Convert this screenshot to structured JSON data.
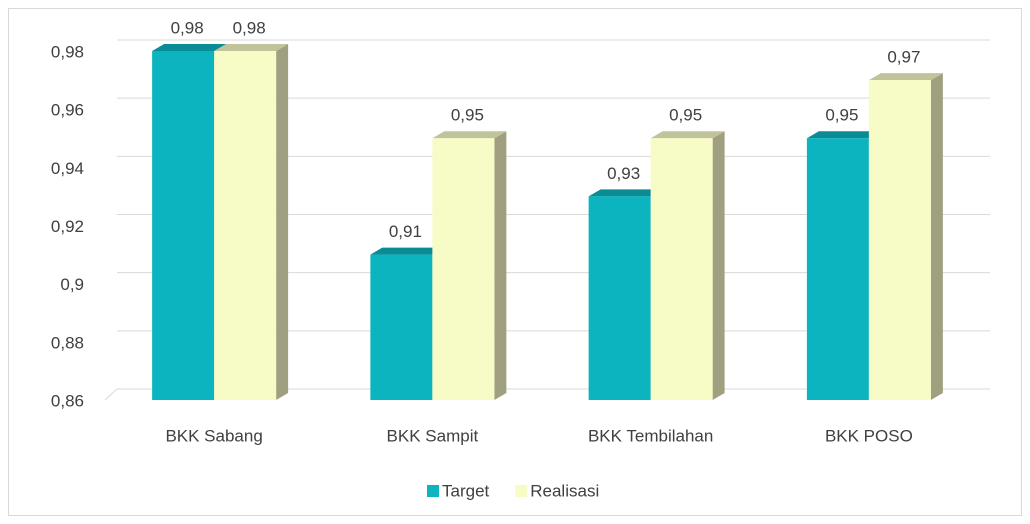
{
  "chart_data": {
    "type": "bar3d",
    "categories": [
      "BKK Sabang",
      "BKK Sampit",
      "BKK Tembilahan",
      "BKK POSO"
    ],
    "series": [
      {
        "name": "Target",
        "color": "#0bb4bf",
        "values": [
          0.98,
          0.91,
          0.93,
          0.95
        ],
        "value_labels": [
          "0,98",
          "0,91",
          "0,93",
          "0,95"
        ]
      },
      {
        "name": "Realisasi",
        "color": "#f7fbc6",
        "values": [
          0.98,
          0.95,
          0.95,
          0.97
        ],
        "value_labels": [
          "0,98",
          "0,95",
          "0,95",
          "0,97"
        ]
      }
    ],
    "ylim": [
      0.86,
      0.98
    ],
    "yticks": [
      {
        "value": 0.86,
        "label": "0,86"
      },
      {
        "value": 0.88,
        "label": "0,88"
      },
      {
        "value": 0.9,
        "label": "0,9"
      },
      {
        "value": 0.92,
        "label": "0,92"
      },
      {
        "value": 0.94,
        "label": "0,94"
      },
      {
        "value": 0.96,
        "label": "0,96"
      },
      {
        "value": 0.98,
        "label": "0,98"
      }
    ],
    "grid": true,
    "legend": "bottom"
  }
}
